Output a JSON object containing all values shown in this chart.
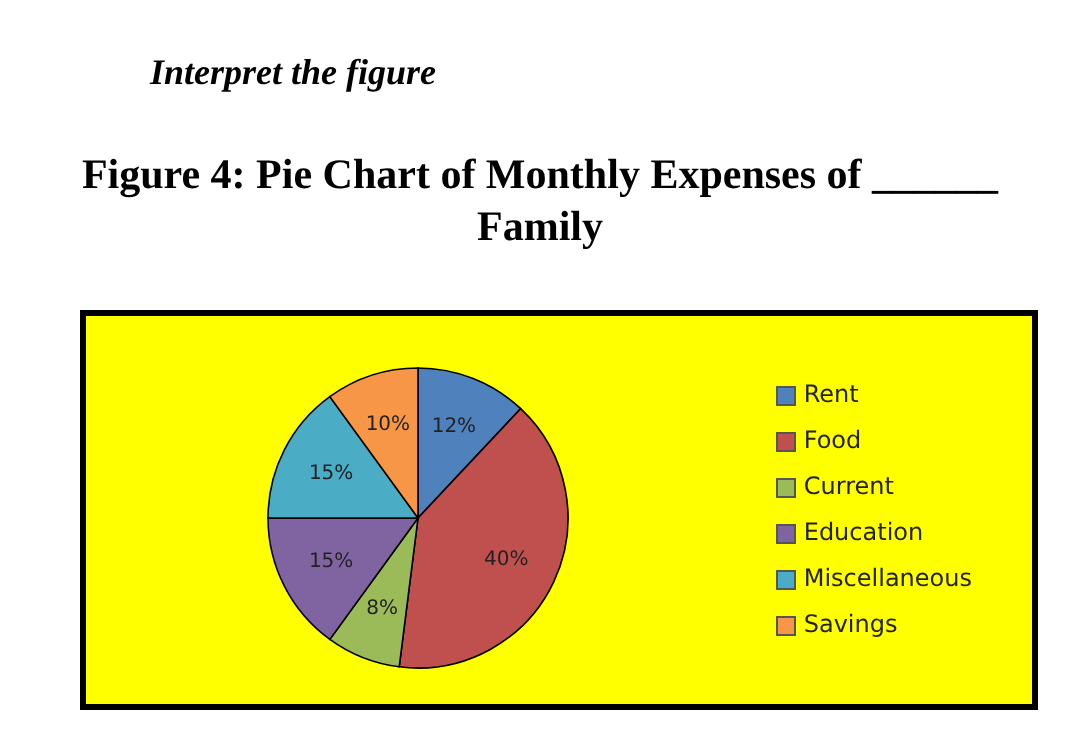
{
  "chart_data": {
    "type": "pie",
    "title": "Figure 4: Pie Chart of Monthly Expenses of ______ Family",
    "annotations": [
      "Interpret the figure"
    ],
    "categories": [
      "Rent",
      "Food",
      "Current",
      "Education",
      "Miscellaneous",
      "Savings"
    ],
    "values": [
      12,
      40,
      8,
      15,
      15,
      10
    ],
    "colors": [
      "#4f81bd",
      "#c0504d",
      "#9bbb59",
      "#8064a2",
      "#4bacc6",
      "#f79646"
    ],
    "value_labels": [
      "12%",
      "40%",
      "8%",
      "15%",
      "15%",
      "10%"
    ],
    "legend": "right"
  }
}
